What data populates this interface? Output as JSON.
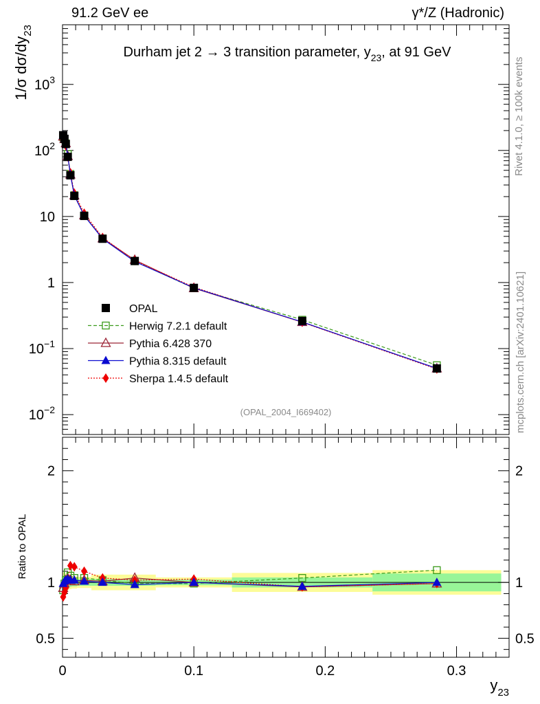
{
  "header": {
    "left": "91.2 GeV ee",
    "right": "γ*/Z (Hadronic)"
  },
  "side": {
    "rivet": "Rivet 4.1.0, ≥ 100k events",
    "mcplots": "mcplots.cern.ch [arXiv:2401.10621]"
  },
  "colors": {
    "data": "#000000",
    "herwig": "#3a9a1a",
    "pythia6": "#9b2335",
    "pythia8": "#0a0ad0",
    "sherpa": "#ee0000",
    "band_inner": "#98f598",
    "band_outer": "#fcfc98"
  },
  "chart_data": [
    {
      "type": "line",
      "title": "Durham jet 2 → 3 transition parameter, y23, at 91 GeV",
      "title_parts": {
        "pre": "Durham jet 2 →  3 transition parameter, y",
        "sub": "23",
        "post": ", at 91 GeV"
      },
      "ylabel": {
        "pre": "1/σ  dσ/dy",
        "sub": "23"
      },
      "yscale": "log",
      "xlim": [
        0,
        0.34
      ],
      "ylim": [
        0.005,
        8000
      ],
      "yticks": [
        {
          "v": 0.01,
          "base": "10",
          "exp": "−2"
        },
        {
          "v": 0.1,
          "base": "10",
          "exp": "−1"
        },
        {
          "v": 1,
          "base": "1",
          "exp": ""
        },
        {
          "v": 10,
          "base": "10",
          "exp": ""
        },
        {
          "v": 100,
          "base": "10",
          "exp": "2"
        },
        {
          "v": 1000,
          "base": "10",
          "exp": "3"
        }
      ],
      "annotation": "(OPAL_2004_I669402)",
      "legend_position": "middle-left",
      "x": [
        0.0005,
        0.0015,
        0.0025,
        0.004,
        0.006,
        0.009,
        0.0165,
        0.0305,
        0.055,
        0.1,
        0.1825,
        0.285
      ],
      "series": [
        {
          "name": "OPAL",
          "key": "data",
          "marker": "square-filled",
          "line": "none",
          "values": [
            170,
            150,
            125,
            80,
            42,
            20.5,
            10.2,
            4.6,
            2.12,
            0.83,
            0.262,
            0.05
          ]
        },
        {
          "name": "Herwig 7.2.1 default",
          "key": "herwig",
          "marker": "square-open",
          "line": "dashed",
          "values": [
            158,
            148,
            128,
            88,
            44,
            21,
            10.4,
            4.65,
            2.1,
            0.82,
            0.273,
            0.056
          ]
        },
        {
          "name": "Pythia 6.428 370",
          "key": "pythia6",
          "marker": "triangle-open",
          "line": "solid",
          "values": [
            162,
            148,
            128,
            82,
            43,
            20.8,
            10.4,
            4.65,
            2.2,
            0.82,
            0.252,
            0.05
          ]
        },
        {
          "name": "Pythia 8.315 default",
          "key": "pythia8",
          "marker": "triangle-filled",
          "line": "solid",
          "values": [
            168,
            152,
            128,
            82,
            43,
            20.8,
            10.3,
            4.6,
            2.08,
            0.83,
            0.253,
            0.05
          ]
        },
        {
          "name": "Sherpa 1.4.5 default",
          "key": "sherpa",
          "marker": "diamond-filled",
          "line": "dotted",
          "values": [
            145,
            138,
            118,
            80,
            46,
            22.5,
            11.2,
            4.8,
            2.15,
            0.85,
            0.25,
            0.049
          ]
        }
      ]
    },
    {
      "type": "line",
      "ylabel": "Ratio to OPAL",
      "xlabel": {
        "pre": "y",
        "sub": "23"
      },
      "xlim": [
        0,
        0.34
      ],
      "ylim": [
        0.33,
        2.3
      ],
      "yticks": [
        0.5,
        1,
        2
      ],
      "xticks": [
        0,
        0.1,
        0.2,
        0.3
      ],
      "xtick_labels": [
        "0",
        "0.1",
        "0.2",
        "0.3"
      ],
      "ytick_labels": [
        "0.5",
        "1",
        "2"
      ],
      "bins": [
        0,
        0.001,
        0.002,
        0.003,
        0.005,
        0.007,
        0.011,
        0.022,
        0.039,
        0.071,
        0.129,
        0.236,
        0.334
      ],
      "band_inner": [
        0.06,
        0.06,
        0.05,
        0.04,
        0.04,
        0.035,
        0.03,
        0.03,
        0.03,
        0.025,
        0.045,
        0.08
      ],
      "band_outer": [
        0.09,
        0.09,
        0.08,
        0.07,
        0.06,
        0.055,
        0.05,
        0.07,
        0.07,
        0.045,
        0.085,
        0.11
      ],
      "x": [
        0.0005,
        0.0015,
        0.0025,
        0.004,
        0.006,
        0.009,
        0.0165,
        0.0305,
        0.055,
        0.1,
        0.1825,
        0.285
      ],
      "series": [
        {
          "name": "Herwig 7.2.1 default",
          "key": "herwig",
          "marker": "square-open",
          "line": "dashed",
          "values": [
            0.93,
            0.99,
            1.02,
            1.09,
            1.06,
            1.04,
            1.04,
            1.02,
            0.99,
            0.99,
            1.04,
            1.11
          ]
        },
        {
          "name": "Pythia 6.428 370",
          "key": "pythia6",
          "marker": "triangle-open",
          "line": "solid",
          "values": [
            0.95,
            0.99,
            1.02,
            1.03,
            1.02,
            1.01,
            1.02,
            1.01,
            1.04,
            1.0,
            0.96,
            0.99
          ]
        },
        {
          "name": "Pythia 8.315 default",
          "key": "pythia8",
          "marker": "triangle-filled",
          "line": "solid",
          "values": [
            0.99,
            1.01,
            1.02,
            1.03,
            1.02,
            1.02,
            1.01,
            1.0,
            0.98,
            1.0,
            0.965,
            1.0
          ]
        },
        {
          "name": "Sherpa 1.4.5 default",
          "key": "sherpa",
          "marker": "diamond-filled",
          "line": "dotted",
          "values": [
            0.87,
            0.91,
            0.95,
            1.01,
            1.15,
            1.14,
            1.1,
            1.04,
            1.02,
            1.03,
            0.96,
            0.99
          ]
        }
      ]
    }
  ]
}
